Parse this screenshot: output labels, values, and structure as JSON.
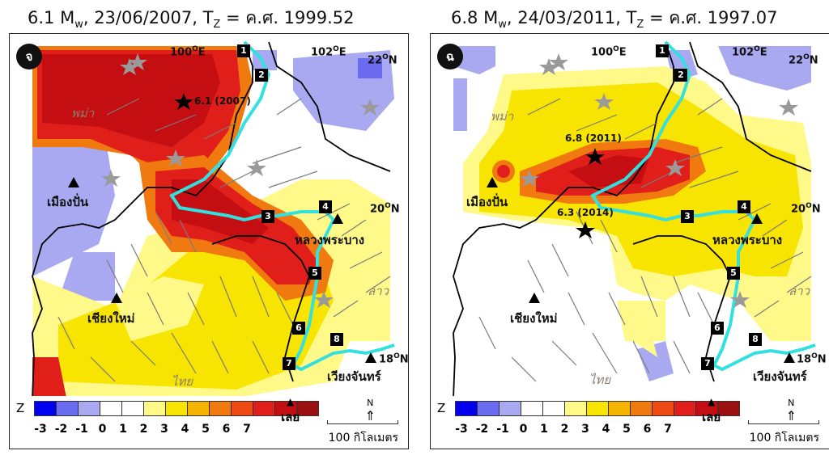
{
  "panels": [
    {
      "title_prefix": "6.1 M",
      "title_sub": "w",
      "title_mid": ", 23/06/2007, T",
      "title_sub2": "Z",
      "title_suffix": " = ค.ศ. 1999.52",
      "tag": "จ",
      "earthquakes": [
        {
          "label": "6.1 (2007)"
        }
      ],
      "coords": {
        "lon1": "100",
        "lon2": "102",
        "lat1": "22",
        "lat2": "20",
        "lat3": "18",
        "unit_deg": "O",
        "e": "E",
        "n": "N"
      },
      "countries": {
        "myanmar": "พม่า",
        "laos": "ลาว",
        "thailand": "ไทย"
      },
      "cities": {
        "mueang_pan": "เมืองปั่น",
        "luang_prabang": "หลวงพระบาง",
        "chiang_mai": "เชียงใหม่",
        "vientiane": "เวียงจันทร์",
        "loei": "เลย"
      },
      "river_points": [
        "1",
        "2",
        "3",
        "4",
        "5",
        "6",
        "7",
        "8"
      ]
    },
    {
      "title_prefix": "6.8 M",
      "title_sub": "w",
      "title_mid": ", 24/03/2011, T",
      "title_sub2": "Z",
      "title_suffix": " = ค.ศ. 1997.07",
      "tag": "ฉ",
      "earthquakes": [
        {
          "label": "6.8 (2011)"
        },
        {
          "label": "6.3 (2014)"
        }
      ],
      "coords": {
        "lon1": "100",
        "lon2": "102",
        "lat1": "22",
        "lat2": "20",
        "lat3": "18",
        "unit_deg": "O",
        "e": "E",
        "n": "N"
      },
      "countries": {
        "myanmar": "พม่า",
        "laos": "ลาว",
        "thailand": "ไทย"
      },
      "cities": {
        "mueang_pan": "เมืองปั่น",
        "luang_prabang": "หลวงพระบาง",
        "chiang_mai": "เชียงใหม่",
        "vientiane": "เวียงจันทร์",
        "loei": "เลย"
      },
      "river_points": [
        "1",
        "2",
        "3",
        "4",
        "5",
        "6",
        "7",
        "8"
      ]
    }
  ],
  "legend": {
    "z_label": "Z",
    "ticks": [
      "-3",
      "-2",
      "-1",
      "0",
      "1",
      "2",
      "3",
      "4",
      "5",
      "6",
      "7"
    ],
    "colors": [
      "#0000ee",
      "#6b6bf0",
      "#a9a9f2",
      "#ffffff",
      "#ffffff",
      "#fff98a",
      "#f7e400",
      "#f5b400",
      "#f07a10",
      "#ee4a14",
      "#e11f1a",
      "#c50e12",
      "#9c0f10"
    ],
    "scale_label": "100 กิโลเมตร",
    "north": "N"
  }
}
